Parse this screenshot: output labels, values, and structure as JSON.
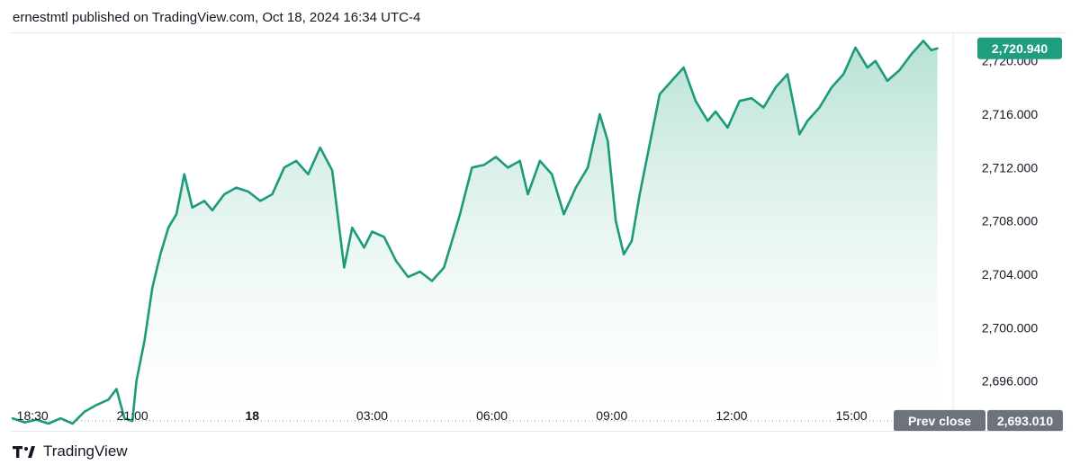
{
  "header": {
    "publish_info": "ernestmtl published on TradingView.com, Oct 18, 2024 16:34 UTC-4"
  },
  "footer": {
    "brand": "TradingView"
  },
  "colors": {
    "line": "#1d9a7c",
    "area_top": "#a9dccc",
    "area_bottom": "#ffffff",
    "badge_green": "#1f9e7f",
    "badge_gray": "#6e727d"
  },
  "chart_data": {
    "type": "area",
    "x_tick_labels": [
      "18:30",
      "21:00",
      "18",
      "03:00",
      "06:00",
      "09:00",
      "12:00",
      "15:00"
    ],
    "x_tick_hours": [
      18.5,
      21,
      24,
      27,
      30,
      33,
      36,
      39
    ],
    "x_range_hours": [
      18.0,
      41.5
    ],
    "y_tick_labels": [
      "2,696.000",
      "2,700.000",
      "2,704.000",
      "2,708.000",
      "2,712.000",
      "2,716.000",
      "2,720.000"
    ],
    "y_ticks": [
      2696,
      2700,
      2704,
      2708,
      2712,
      2716,
      2720
    ],
    "ylim": [
      2692.6,
      2721.8
    ],
    "prev_close": {
      "label": "Prev close",
      "value": 2693.01,
      "value_text": "2,693.010"
    },
    "last_price": {
      "value": 2720.94,
      "value_text": "2,720.940"
    },
    "series": [
      {
        "x_hours": [
          18.0,
          18.3,
          18.6,
          18.9,
          19.2,
          19.5,
          19.8,
          20.1,
          20.4,
          20.6,
          20.8,
          21.0,
          21.1,
          21.3,
          21.5,
          21.7,
          21.9,
          22.1,
          22.3,
          22.5,
          22.8,
          23.0,
          23.3,
          23.6,
          23.9,
          24.2,
          24.5,
          24.8,
          25.1,
          25.4,
          25.7,
          26.0,
          26.3,
          26.5,
          26.8,
          27.0,
          27.3,
          27.6,
          27.9,
          28.2,
          28.5,
          28.8,
          29.0,
          29.2,
          29.5,
          29.8,
          30.1,
          30.4,
          30.7,
          30.9,
          31.2,
          31.5,
          31.8,
          32.1,
          32.4,
          32.7,
          32.9,
          33.1,
          33.3,
          33.5,
          33.7,
          34.0,
          34.2,
          34.5,
          34.8,
          35.1,
          35.4,
          35.6,
          35.9,
          36.2,
          36.5,
          36.8,
          37.1,
          37.4,
          37.7,
          37.9,
          38.2,
          38.5,
          38.8,
          39.1,
          39.4,
          39.6,
          39.9,
          40.2,
          40.5,
          40.8,
          41.0,
          41.15
        ],
        "values": [
          2693.2,
          2692.9,
          2693.1,
          2692.8,
          2693.2,
          2692.8,
          2693.7,
          2694.2,
          2694.6,
          2695.4,
          2693.2,
          2693.0,
          2696.0,
          2699.0,
          2703.0,
          2705.5,
          2707.5,
          2708.5,
          2711.5,
          2709.0,
          2709.5,
          2708.8,
          2710.0,
          2710.5,
          2710.2,
          2709.5,
          2710.0,
          2712.0,
          2712.5,
          2711.5,
          2713.5,
          2711.8,
          2704.5,
          2707.5,
          2706.0,
          2707.2,
          2706.8,
          2705.0,
          2703.8,
          2704.2,
          2703.5,
          2704.5,
          2706.5,
          2708.5,
          2712.0,
          2712.2,
          2712.8,
          2712.0,
          2712.5,
          2710.0,
          2712.5,
          2711.5,
          2708.5,
          2710.5,
          2712.0,
          2716.0,
          2714.0,
          2708.0,
          2705.5,
          2706.5,
          2710.0,
          2714.5,
          2717.5,
          2718.5,
          2719.5,
          2717.0,
          2715.5,
          2716.2,
          2715.0,
          2717.0,
          2717.2,
          2716.5,
          2718.0,
          2719.0,
          2714.5,
          2715.5,
          2716.5,
          2718.0,
          2719.0,
          2721.0,
          2719.5,
          2720.0,
          2718.5,
          2719.3,
          2720.5,
          2721.5,
          2720.8,
          2720.94
        ]
      }
    ],
    "grid": false,
    "legend": "none"
  }
}
